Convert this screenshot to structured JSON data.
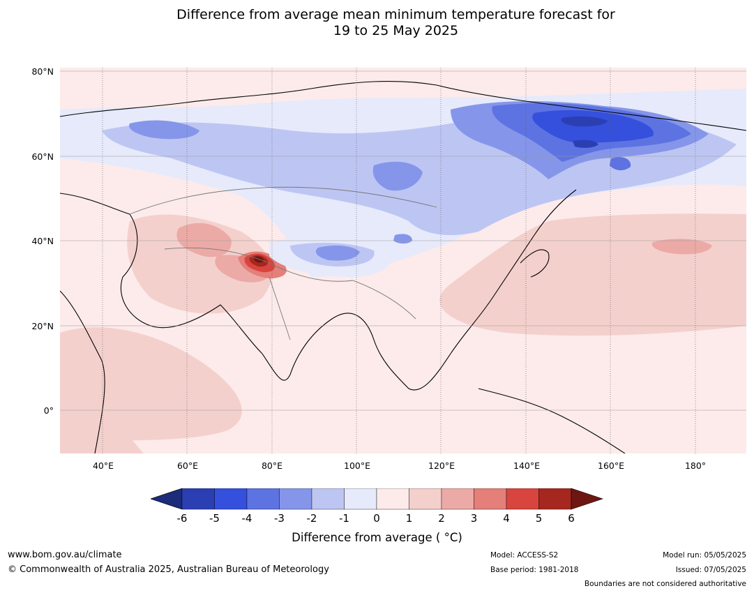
{
  "title_line1": "Difference from average mean minimum temperature forecast for",
  "title_line2": "19 to 25 May 2025",
  "lat_labels": [
    "80°N",
    "60°N",
    "40°N",
    "20°N",
    "0°"
  ],
  "lon_labels": [
    "40°E",
    "60°E",
    "80°E",
    "100°E",
    "120°E",
    "140°E",
    "160°E",
    "180°"
  ],
  "colorbar": {
    "ticks": [
      "-6",
      "-5",
      "-4",
      "-3",
      "-2",
      "-1",
      "0",
      "1",
      "2",
      "3",
      "4",
      "5",
      "6"
    ],
    "label": "Difference from average ( °C)",
    "colors": [
      "#1c2b7a",
      "#2b3fb3",
      "#3450dd",
      "#5d73e2",
      "#8596ea",
      "#bdc6f3",
      "#e6eafb",
      "#fcebea",
      "#f4d0cd",
      "#ecaaa6",
      "#e47f79",
      "#d8453e",
      "#a5271f",
      "#6e1712"
    ]
  },
  "footer": {
    "url": "www.bom.gov.au/climate",
    "copyright": "© Commonwealth of Australia 2025, Australian Bureau of Meteorology",
    "model": "Model: ACCESS-S2",
    "base_period": "Base period: 1981-2018",
    "model_run": "Model run: 05/05/2025",
    "issued": "Issued: 07/05/2025",
    "disclaimer": "Boundaries are not considered authoritative"
  }
}
